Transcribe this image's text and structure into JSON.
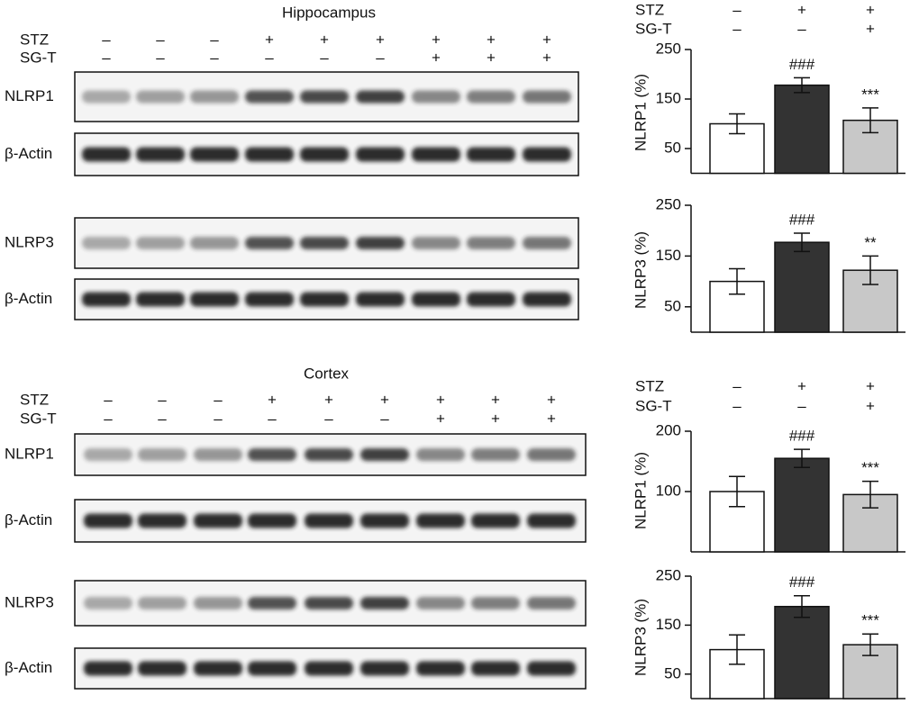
{
  "blots": [
    {
      "title": "Hippocampus",
      "conditions": [
        {
          "name": "STZ",
          "signs": [
            "–",
            "–",
            "–",
            "+",
            "+",
            "+",
            "+",
            "+",
            "+"
          ]
        },
        {
          "name": "SG-T",
          "signs": [
            "–",
            "–",
            "–",
            "–",
            "–",
            "–",
            "+",
            "+",
            "+"
          ]
        }
      ],
      "rows": [
        "NLRP1",
        "β-Actin",
        "NLRP3",
        "β-Actin"
      ]
    },
    {
      "title": "Cortex",
      "conditions": [
        {
          "name": "STZ",
          "signs": [
            "–",
            "–",
            "–",
            "+",
            "+",
            "+",
            "+",
            "+",
            "+"
          ]
        },
        {
          "name": "SG-T",
          "signs": [
            "–",
            "–",
            "–",
            "–",
            "–",
            "–",
            "+",
            "+",
            "+"
          ]
        }
      ],
      "rows": [
        "NLRP1",
        "β-Actin",
        "NLRP3",
        "β-Actin"
      ]
    }
  ],
  "chart_data": [
    {
      "type": "bar",
      "ylabel": "NLRP1 (%)",
      "conditions": [
        {
          "name": "STZ",
          "signs": [
            "–",
            "+",
            "+"
          ]
        },
        {
          "name": "SG-T",
          "signs": [
            "–",
            "–",
            "+"
          ]
        }
      ],
      "values": [
        100,
        178,
        107
      ],
      "errors": [
        20,
        15,
        25
      ],
      "annotations": [
        null,
        "###",
        "***"
      ],
      "colors": [
        "#ffffff",
        "#333333",
        "#c8c8c8"
      ],
      "ylim": [
        0,
        250
      ],
      "yticks": [
        50,
        150,
        250
      ]
    },
    {
      "type": "bar",
      "ylabel": "NLRP3 (%)",
      "values": [
        100,
        177,
        122
      ],
      "errors": [
        25,
        18,
        28
      ],
      "annotations": [
        null,
        "###",
        "**"
      ],
      "colors": [
        "#ffffff",
        "#333333",
        "#c8c8c8"
      ],
      "ylim": [
        0,
        250
      ],
      "yticks": [
        50,
        150,
        250
      ]
    },
    {
      "type": "bar",
      "ylabel": "NLRP1 (%)",
      "conditions": [
        {
          "name": "STZ",
          "signs": [
            "–",
            "+",
            "+"
          ]
        },
        {
          "name": "SG-T",
          "signs": [
            "–",
            "–",
            "+"
          ]
        }
      ],
      "values": [
        100,
        155,
        95
      ],
      "errors": [
        25,
        15,
        22
      ],
      "annotations": [
        null,
        "###",
        "***"
      ],
      "colors": [
        "#ffffff",
        "#333333",
        "#c8c8c8"
      ],
      "ylim": [
        0,
        200
      ],
      "yticks": [
        100,
        200
      ]
    },
    {
      "type": "bar",
      "ylabel": "NLRP3 (%)",
      "values": [
        100,
        188,
        110
      ],
      "errors": [
        30,
        22,
        22
      ],
      "annotations": [
        null,
        "###",
        "***"
      ],
      "colors": [
        "#ffffff",
        "#333333",
        "#c8c8c8"
      ],
      "ylim": [
        0,
        250
      ],
      "yticks": [
        50,
        150,
        250
      ]
    }
  ]
}
